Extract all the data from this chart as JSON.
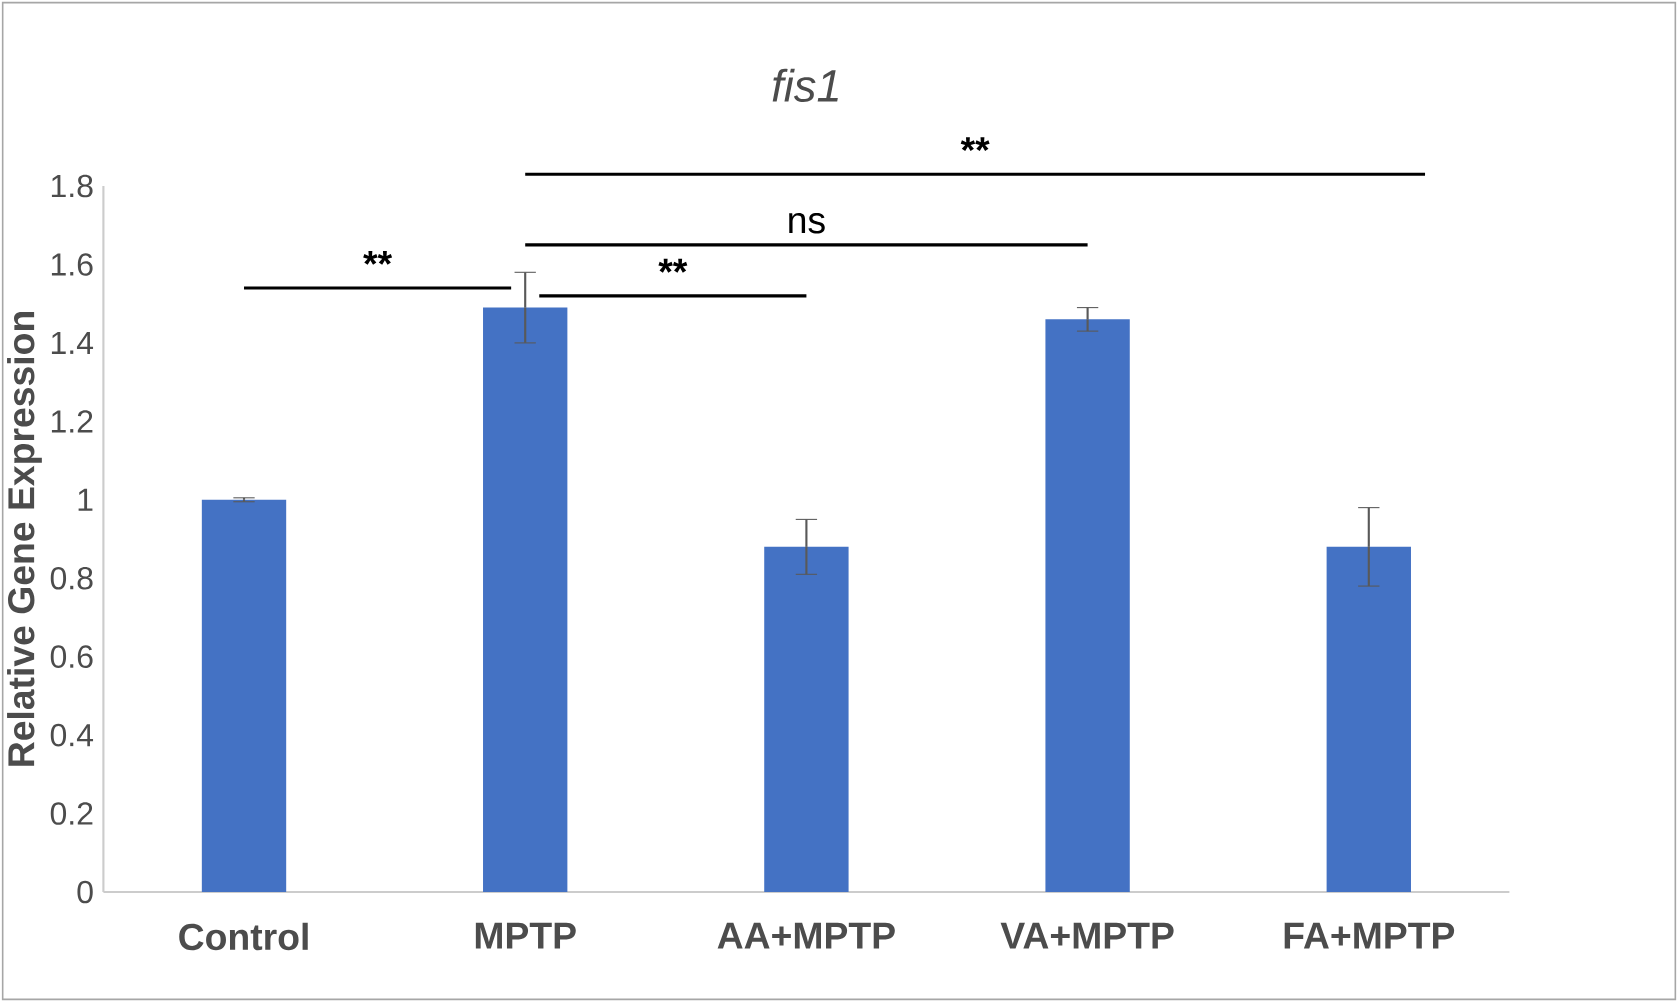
{
  "chart_data": {
    "type": "bar",
    "title": "fis1",
    "ylabel": "Relative Gene Expression",
    "categories": [
      "Control",
      "MPTP",
      "AA+MPTP",
      "VA+MPTP",
      "FA+MPTP"
    ],
    "values": [
      1.0,
      1.49,
      0.88,
      1.46,
      0.88
    ],
    "errors": [
      0.005,
      0.09,
      0.07,
      0.03,
      0.1
    ],
    "color": "#4472c4",
    "ylim": [
      0,
      1.8
    ],
    "yticks": [
      0,
      0.2,
      0.4,
      0.6,
      0.8,
      1,
      1.2,
      1.4,
      1.6,
      1.8
    ],
    "annotations": [
      "**",
      "**",
      "ns",
      "**"
    ]
  }
}
